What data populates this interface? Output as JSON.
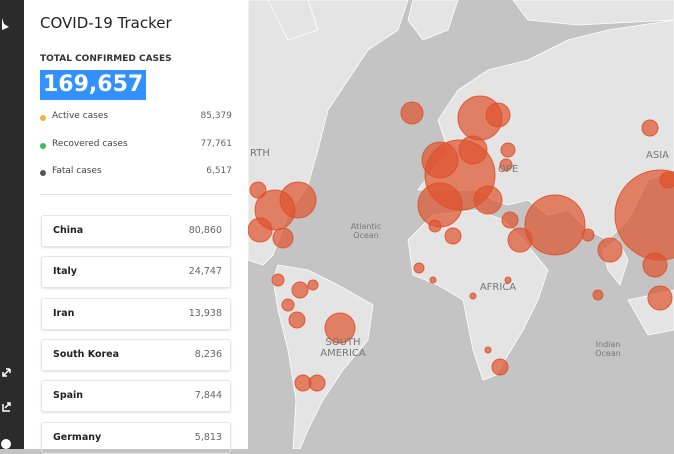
{
  "header": {
    "title": "COVID-19 Tracker"
  },
  "summary": {
    "label": "TOTAL CONFIRMED CASES",
    "total": "169,657",
    "breakdown": [
      {
        "label": "Active cases",
        "value": "85,379",
        "color": "#e8b93a"
      },
      {
        "label": "Recovered cases",
        "value": "77,761",
        "color": "#3fb85f"
      },
      {
        "label": "Fatal cases",
        "value": "6,517",
        "color": "#555555"
      }
    ]
  },
  "countries": [
    {
      "name": "China",
      "value": "80,860"
    },
    {
      "name": "Italy",
      "value": "24,747"
    },
    {
      "name": "Iran",
      "value": "13,938"
    },
    {
      "name": "South Korea",
      "value": "8,236"
    },
    {
      "name": "Spain",
      "value": "7,844"
    },
    {
      "name": "Germany",
      "value": "5,813"
    }
  ],
  "map": {
    "labels": [
      "RTH",
      "OPE",
      "ASIA",
      "Atlantic Ocean",
      "AFRICA",
      "SOUTH AMERICA",
      "Indian Ocean"
    ]
  }
}
